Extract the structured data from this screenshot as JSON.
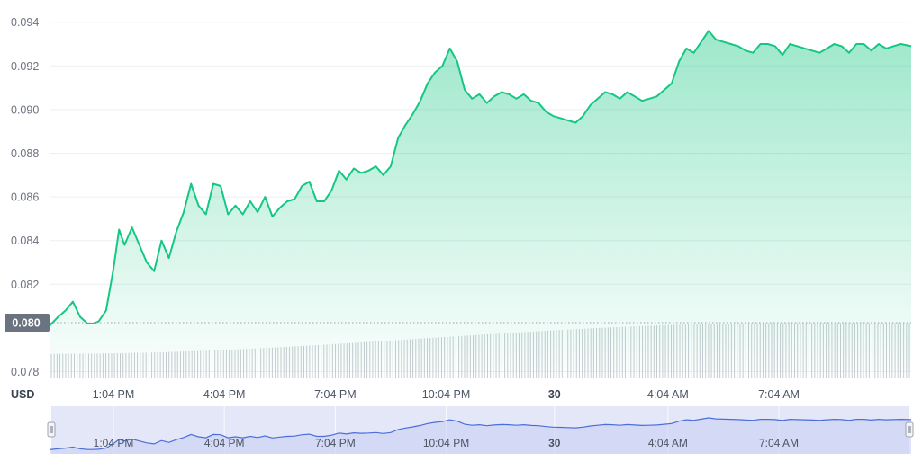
{
  "currency_label": "USD",
  "reference_price": "0.080",
  "chart_data": {
    "type": "area",
    "ylim": [
      0.078,
      0.094
    ],
    "y_ticks": [
      "0.094",
      "0.092",
      "0.090",
      "0.088",
      "0.086",
      "0.084",
      "0.082",
      "0.078"
    ],
    "x_ticks": [
      {
        "label": "1:04 PM",
        "x": 1
      },
      {
        "label": "4:04 PM",
        "x": 4
      },
      {
        "label": "7:04 PM",
        "x": 7
      },
      {
        "label": "10:04 PM",
        "x": 10
      },
      {
        "label": "30",
        "x": 12.93,
        "bold": true
      },
      {
        "label": "4:04 AM",
        "x": 16
      },
      {
        "label": "7:04 AM",
        "x": 19
      }
    ],
    "xlim": [
      -0.73,
      22.58
    ],
    "x": [
      -0.73,
      -0.5,
      -0.3,
      -0.1,
      0.1,
      0.3,
      0.45,
      0.6,
      0.8,
      1.0,
      1.15,
      1.3,
      1.5,
      1.7,
      1.9,
      2.1,
      2.3,
      2.5,
      2.7,
      2.9,
      3.1,
      3.3,
      3.5,
      3.7,
      3.9,
      4.1,
      4.3,
      4.5,
      4.7,
      4.9,
      5.1,
      5.3,
      5.5,
      5.7,
      5.9,
      6.1,
      6.3,
      6.5,
      6.7,
      6.9,
      7.1,
      7.3,
      7.5,
      7.7,
      7.9,
      8.1,
      8.3,
      8.5,
      8.7,
      8.9,
      9.1,
      9.3,
      9.5,
      9.7,
      9.9,
      10.1,
      10.3,
      10.5,
      10.7,
      10.9,
      11.1,
      11.3,
      11.5,
      11.7,
      11.9,
      12.1,
      12.3,
      12.5,
      12.7,
      12.9,
      13.1,
      13.3,
      13.5,
      13.7,
      13.9,
      14.1,
      14.3,
      14.5,
      14.7,
      14.9,
      15.1,
      15.3,
      15.5,
      15.7,
      15.9,
      16.1,
      16.3,
      16.5,
      16.7,
      16.9,
      17.1,
      17.3,
      17.5,
      17.7,
      17.9,
      18.1,
      18.3,
      18.5,
      18.7,
      18.9,
      19.1,
      19.3,
      19.5,
      19.7,
      19.9,
      20.1,
      20.3,
      20.5,
      20.7,
      20.9,
      21.1,
      21.3,
      21.5,
      21.7,
      21.9,
      22.1,
      22.3,
      22.58
    ],
    "series": [
      {
        "values": [
          0.0801,
          0.0805,
          0.0808,
          0.0812,
          0.0805,
          0.0802,
          0.0802,
          0.0803,
          0.0808,
          0.0827,
          0.0845,
          0.0838,
          0.0846,
          0.0838,
          0.083,
          0.0826,
          0.084,
          0.0832,
          0.0844,
          0.0853,
          0.0866,
          0.0856,
          0.0852,
          0.0866,
          0.0865,
          0.0852,
          0.0856,
          0.0852,
          0.0858,
          0.0853,
          0.086,
          0.0851,
          0.0855,
          0.0858,
          0.0859,
          0.0865,
          0.0867,
          0.0858,
          0.0858,
          0.0863,
          0.0872,
          0.0868,
          0.0873,
          0.0871,
          0.0872,
          0.0874,
          0.087,
          0.0874,
          0.0887,
          0.0893,
          0.0898,
          0.0904,
          0.0912,
          0.0917,
          0.092,
          0.0928,
          0.0922,
          0.0909,
          0.0905,
          0.0907,
          0.0903,
          0.0906,
          0.0908,
          0.0907,
          0.0905,
          0.0907,
          0.0904,
          0.0903,
          0.0899,
          0.0897,
          0.0896,
          0.0895,
          0.0894,
          0.0897,
          0.0902,
          0.0905,
          0.0908,
          0.0907,
          0.0905,
          0.0908,
          0.0906,
          0.0904,
          0.0905,
          0.0906,
          0.0909,
          0.0912,
          0.0922,
          0.0928,
          0.0926,
          0.0931,
          0.0936,
          0.0932,
          0.0931,
          0.093,
          0.0929,
          0.0927,
          0.0926,
          0.093,
          0.093,
          0.0929,
          0.0925,
          0.093,
          0.0929,
          0.0928,
          0.0927,
          0.0926,
          0.0928,
          0.093,
          0.0929,
          0.0926,
          0.093,
          0.093,
          0.0927,
          0.093,
          0.0928,
          0.0929,
          0.093,
          0.0929
        ]
      }
    ],
    "volume": {
      "points": 300,
      "start": 0.42,
      "end": 0.95
    },
    "navigator": {
      "x_ticks": [
        {
          "label": "1:04 PM",
          "x": 1
        },
        {
          "label": "4:04 PM",
          "x": 4
        },
        {
          "label": "7:04 PM",
          "x": 7
        },
        {
          "label": "10:04 PM",
          "x": 10
        },
        {
          "label": "30",
          "x": 12.93,
          "bold": true
        },
        {
          "label": "4:04 AM",
          "x": 16
        },
        {
          "label": "7:04 AM",
          "x": 19
        }
      ]
    },
    "colors": {
      "line": "#16c784",
      "area_top": "#16c784",
      "volume": "#c7cbd1",
      "grid": "#eceff3",
      "navigator_bg": "#e3e7f8",
      "navigator_line": "#4c6ed9",
      "reference_badge": "#6b7280"
    }
  }
}
